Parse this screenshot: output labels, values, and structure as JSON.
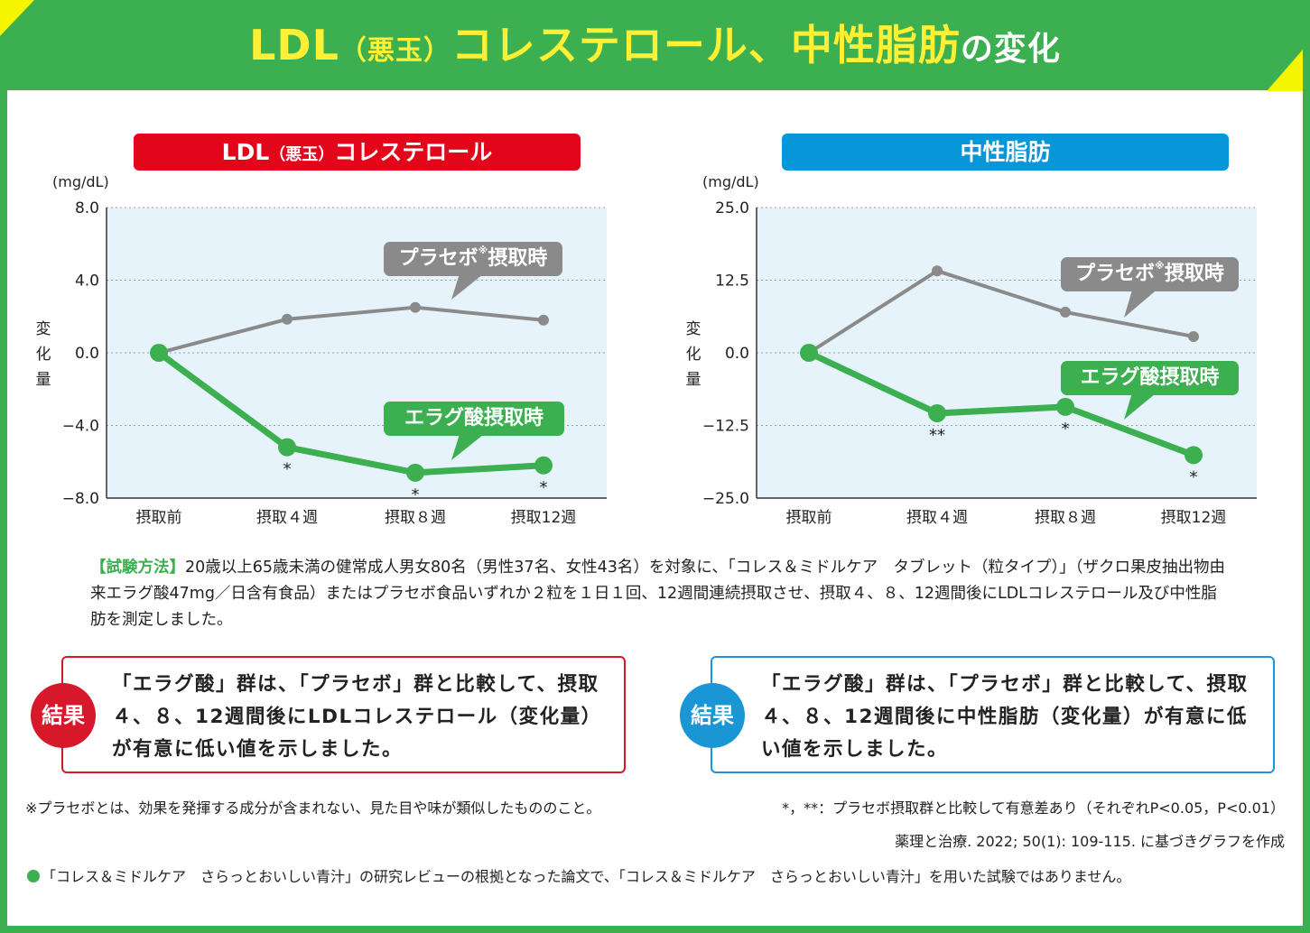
{
  "header": {
    "title_part1": "LDL",
    "title_part2": "（悪玉）",
    "title_part3": "コレステロール、中性脂肪",
    "title_part4": "の変化"
  },
  "charts_titles": {
    "ldl_part1": "LDL",
    "ldl_part2": "（悪玉）",
    "ldl_part3": "コレステロール",
    "tg": "中性脂肪"
  },
  "bubbles": {
    "placebo": "プラセボ",
    "placebo_mark": "※",
    "placebo_suffix": "摂取時",
    "ellagic": "エラグ酸摂取時"
  },
  "colors": {
    "placebo": "#8a8a8a",
    "ellagic": "#3cb050",
    "plot_bg": "#e6f3fb",
    "ldl_title": "#e3061b",
    "tg_title": "#0797d8"
  },
  "chart_data": [
    {
      "type": "line",
      "title": "LDL（悪玉）コレステロール",
      "unit": "(mg/dL)",
      "ylabel": "変化量",
      "categories": [
        "摂取前",
        "摂取４週",
        "摂取８週",
        "摂取12週"
      ],
      "ylim": [
        -8.0,
        8.0
      ],
      "yticks": [
        "8.0",
        "4.0",
        "0.0",
        "−4.0",
        "−8.0"
      ],
      "ytick_values": [
        8,
        4,
        0,
        -4,
        -8
      ],
      "grid": true,
      "series": [
        {
          "name": "プラセボ※摂取時",
          "values": [
            0,
            1.85,
            2.5,
            1.8
          ],
          "sig": [
            "",
            "",
            "",
            ""
          ]
        },
        {
          "name": "エラグ酸摂取時",
          "values": [
            0,
            -5.2,
            -6.6,
            -6.2
          ],
          "sig": [
            "",
            "*",
            "*",
            "*"
          ]
        }
      ]
    },
    {
      "type": "line",
      "title": "中性脂肪",
      "unit": "(mg/dL)",
      "ylabel": "変化量",
      "categories": [
        "摂取前",
        "摂取４週",
        "摂取８週",
        "摂取12週"
      ],
      "ylim": [
        -25.0,
        25.0
      ],
      "yticks": [
        "25.0",
        "12.5",
        "0.0",
        "−12.5",
        "−25.0"
      ],
      "ytick_values": [
        25,
        12.5,
        0,
        -12.5,
        -25
      ],
      "grid": true,
      "series": [
        {
          "name": "プラセボ※摂取時",
          "values": [
            0,
            14.1,
            7.0,
            2.8
          ],
          "sig": [
            "",
            "",
            "",
            ""
          ]
        },
        {
          "name": "エラグ酸摂取時",
          "values": [
            0,
            -10.4,
            -9.3,
            -17.6
          ],
          "sig": [
            "",
            "**",
            "*",
            "*"
          ]
        }
      ]
    }
  ],
  "method": {
    "label": "【試験方法】",
    "text": "20歳以上65歳未満の健常成人男女80名（男性37名、女性43名）を対象に、「コレス＆ミドルケア　タブレット（粒タイプ）」（ザクロ果皮抽出物由来エラグ酸47mg／日含有食品）またはプラセボ食品いずれか２粒を１日１回、12週間連続摂取させ、摂取４、８、12週間後にLDLコレステロール及び中性脂肪を測定しました。"
  },
  "results": {
    "badge": "結果",
    "ldl": "「エラグ酸」群は、「プラセボ」群と比較して、摂取４、８、12週間後にLDLコレステロール（変化量）が有意に低い値を示しました。",
    "tg": "「エラグ酸」群は、「プラセボ」群と比較して、摂取４、８、12週間後に中性脂肪（変化量）が有意に低い値を示しました。"
  },
  "notes": {
    "placebo_def": "※プラセボとは、効果を発揮する成分が含まれない、見た目や味が類似したもののこと。",
    "sig_def": "*，**：プラセボ摂取群と比較して有意差あり（それぞれP<0.05，P<0.01）",
    "source": "薬理と治療. 2022; 50(1): 109-115. に基づきグラフを作成",
    "disclaimer": "「コレス＆ミドルケア　さらっとおいしい青汁」の研究レビューの根拠となった論文で、「コレス＆ミドルケア　さらっとおいしい青汁」を用いた試験ではありません。"
  }
}
